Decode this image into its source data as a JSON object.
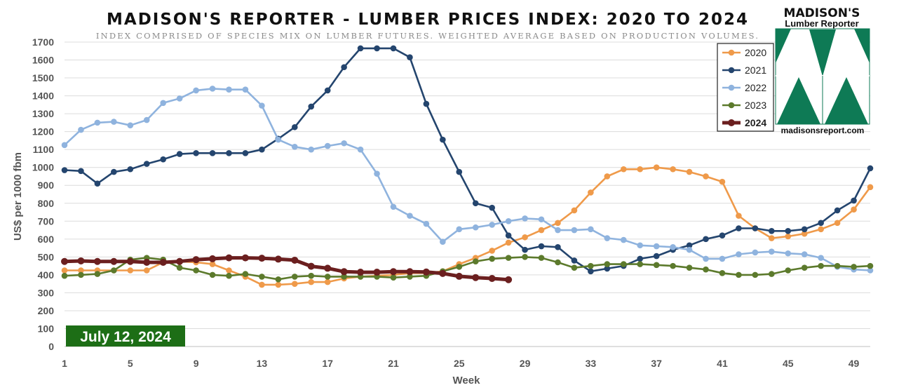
{
  "chart_data": {
    "type": "line",
    "title": "MADISON'S REPORTER - LUMBER PRICES INDEX: 2020 TO 2024",
    "subtitle": "INDEX COMPRISED OF SPECIES MIX ON LUMBER FUTURES. WEIGHTED AVERAGE BASED ON PRODUCTION VOLUMES.",
    "xlabel": "Week",
    "ylabel": "US$ per 1000 fbm",
    "ylim": [
      0,
      1700
    ],
    "xlim": [
      1,
      50
    ],
    "yticks": [
      0,
      100,
      200,
      300,
      400,
      500,
      600,
      700,
      800,
      900,
      1000,
      1100,
      1200,
      1300,
      1400,
      1500,
      1600,
      1700
    ],
    "xticks": [
      1,
      5,
      9,
      13,
      17,
      21,
      25,
      29,
      33,
      37,
      41,
      45,
      49
    ],
    "grid": "horizontal",
    "legend": "top-right",
    "date_label": "July 12, 2024",
    "series": [
      {
        "name": "2020",
        "color": "#ef9a4a",
        "weight": "normal",
        "start_week": 1,
        "values": [
          425,
          425,
          425,
          425,
          425,
          425,
          470,
          475,
          470,
          460,
          425,
          390,
          345,
          345,
          350,
          360,
          360,
          380,
          390,
          395,
          400,
          410,
          410,
          420,
          460,
          495,
          535,
          580,
          610,
          650,
          690,
          760,
          860,
          950,
          990,
          990,
          1000,
          990,
          975,
          950,
          920,
          730,
          660,
          605,
          615,
          630,
          655,
          690,
          765,
          890
        ]
      },
      {
        "name": "2021",
        "color": "#24456e",
        "weight": "normal",
        "start_week": 1,
        "values": [
          985,
          980,
          910,
          975,
          990,
          1020,
          1045,
          1075,
          1080,
          1080,
          1080,
          1080,
          1100,
          1160,
          1225,
          1340,
          1430,
          1560,
          1665,
          1665,
          1665,
          1615,
          1355,
          1155,
          975,
          800,
          775,
          620,
          540,
          560,
          555,
          480,
          420,
          435,
          450,
          490,
          505,
          540,
          565,
          600,
          620,
          660,
          660,
          645,
          645,
          655,
          690,
          760,
          815,
          995
        ]
      },
      {
        "name": "2022",
        "color": "#8fb3de",
        "weight": "normal",
        "start_week": 1,
        "values": [
          1125,
          1210,
          1250,
          1255,
          1235,
          1265,
          1360,
          1385,
          1430,
          1440,
          1435,
          1435,
          1345,
          1155,
          1115,
          1100,
          1120,
          1135,
          1100,
          965,
          780,
          730,
          685,
          585,
          655,
          665,
          680,
          700,
          715,
          710,
          650,
          650,
          655,
          605,
          595,
          565,
          560,
          555,
          540,
          490,
          490,
          515,
          525,
          530,
          520,
          515,
          495,
          445,
          430,
          425
        ]
      },
      {
        "name": "2023",
        "color": "#5c7a2c",
        "weight": "normal",
        "start_week": 1,
        "values": [
          395,
          400,
          405,
          425,
          485,
          495,
          485,
          440,
          425,
          400,
          395,
          405,
          390,
          375,
          390,
          395,
          390,
          390,
          390,
          390,
          385,
          390,
          395,
          420,
          445,
          475,
          490,
          495,
          500,
          495,
          470,
          440,
          450,
          460,
          460,
          460,
          455,
          450,
          440,
          430,
          410,
          400,
          400,
          405,
          425,
          440,
          450,
          450,
          445,
          450
        ]
      },
      {
        "name": "2024",
        "color": "#6b1f1f",
        "weight": "bold",
        "start_week": 1,
        "values": [
          475,
          478,
          475,
          475,
          475,
          470,
          470,
          475,
          485,
          490,
          495,
          495,
          493,
          488,
          482,
          448,
          437,
          418,
          415,
          415,
          418,
          418,
          416,
          408,
          392,
          385,
          380,
          373
        ]
      }
    ]
  },
  "logo": {
    "name_line1": "MADISON'S",
    "name_line2": "Lumber Reporter",
    "url": "madisonsreport.com",
    "color": "#0e7a55"
  }
}
